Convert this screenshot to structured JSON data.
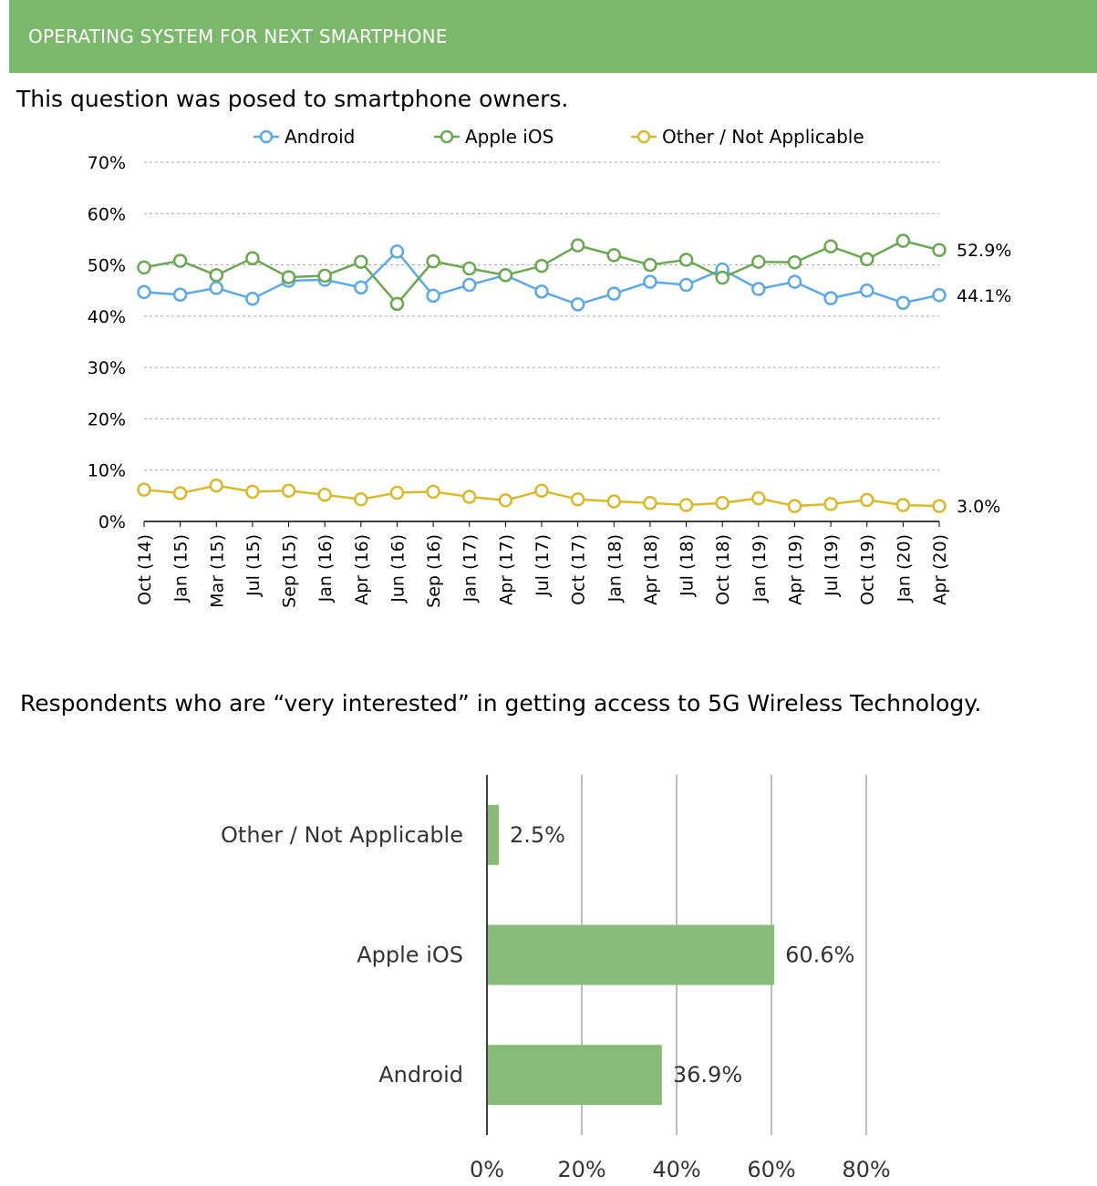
{
  "header": {
    "title": "OPERATING SYSTEM FOR NEXT SMARTPHONE"
  },
  "line_subtitle": "This question was posed to smartphone owners.",
  "bar_subtitle": "Respondents who are “very interested” in getting access to 5G Wireless Technology.",
  "colors": {
    "android": "#5aa9e8",
    "ios": "#6aa84f",
    "other": "#d9b92a",
    "bar": "#86bc78",
    "header": "#7cb86b"
  },
  "chart_data": [
    {
      "type": "line",
      "title": "",
      "xlabel": "",
      "ylabel": "",
      "ylim": [
        0,
        70
      ],
      "y_ticks": [
        "0%",
        "10%",
        "20%",
        "30%",
        "40%",
        "50%",
        "60%",
        "70%"
      ],
      "grid": "horizontal-dotted",
      "legend": "top",
      "categories": [
        "Oct (14)",
        "Jan (15)",
        "Mar (15)",
        "Jul (15)",
        "Sep (15)",
        "Jan (16)",
        "Apr (16)",
        "Jun (16)",
        "Sep (16)",
        "Jan (17)",
        "Apr (17)",
        "Jul (17)",
        "Oct (17)",
        "Jan (18)",
        "Apr (18)",
        "Jul (18)",
        "Oct (18)",
        "Jan (19)",
        "Apr (19)",
        "Jul (19)",
        "Oct (19)",
        "Jan (20)",
        "Apr (20)"
      ],
      "series": [
        {
          "name": "Android",
          "color": "#5aa9e8",
          "end_label": "44.1%",
          "values": [
            44.7,
            44.2,
            45.5,
            43.4,
            46.9,
            47.1,
            45.6,
            52.6,
            44.0,
            46.1,
            48.0,
            44.8,
            42.3,
            44.4,
            46.7,
            46.1,
            49.1,
            45.3,
            46.7,
            43.5,
            45.0,
            42.6,
            44.1
          ]
        },
        {
          "name": "Apple iOS",
          "color": "#6aa84f",
          "end_label": "52.9%",
          "values": [
            49.5,
            50.8,
            48.0,
            51.3,
            47.6,
            47.9,
            50.6,
            42.4,
            50.7,
            49.3,
            48.0,
            49.8,
            53.8,
            51.9,
            50.0,
            51.0,
            47.5,
            50.6,
            50.5,
            53.6,
            51.1,
            54.7,
            52.9
          ]
        },
        {
          "name": "Other / Not Applicable",
          "color": "#d9b92a",
          "end_label": "3.0%",
          "values": [
            6.2,
            5.5,
            7.0,
            5.8,
            6.0,
            5.2,
            4.3,
            5.6,
            5.8,
            4.8,
            4.1,
            6.0,
            4.3,
            3.9,
            3.6,
            3.2,
            3.6,
            4.5,
            3.0,
            3.4,
            4.2,
            3.2,
            3.0
          ]
        }
      ]
    },
    {
      "type": "bar",
      "orientation": "horizontal",
      "title": "",
      "xlabel": "",
      "ylabel": "",
      "xlim": [
        0,
        80
      ],
      "x_ticks": [
        "0%",
        "20%",
        "40%",
        "60%",
        "80%"
      ],
      "grid": "vertical",
      "categories": [
        "Other / Not Applicable",
        "Apple iOS",
        "Android"
      ],
      "values": [
        2.5,
        60.6,
        36.9
      ],
      "value_labels": [
        "2.5%",
        "60.6%",
        "36.9%"
      ]
    }
  ]
}
